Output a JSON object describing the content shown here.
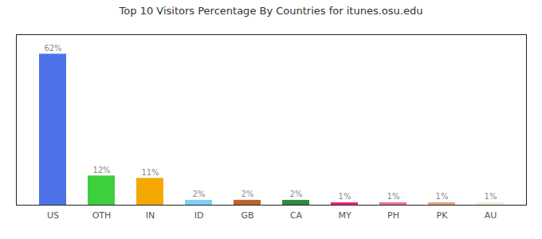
{
  "chart_data": {
    "type": "bar",
    "title": "Top 10 Visitors Percentage By Countries for itunes.osu.edu",
    "categories": [
      "US",
      "OTH",
      "IN",
      "ID",
      "GB",
      "CA",
      "MY",
      "PH",
      "PK",
      "AU"
    ],
    "values": [
      62,
      12,
      11,
      2,
      2,
      2,
      1,
      1,
      1,
      1
    ],
    "value_labels": [
      "62%",
      "12%",
      "11%",
      "2%",
      "2%",
      "2%",
      "1%",
      "1%",
      "1%",
      "1%"
    ],
    "colors": [
      "#4d72e8",
      "#3ecf3e",
      "#f5a800",
      "#7ecef5",
      "#c0622a",
      "#2e8b40",
      "#f02080",
      "#f07090",
      "#e8a080",
      "#f0eed8"
    ],
    "ylim": [
      0,
      70
    ],
    "grid": false,
    "data_labels": true,
    "tick_labels": "x"
  }
}
